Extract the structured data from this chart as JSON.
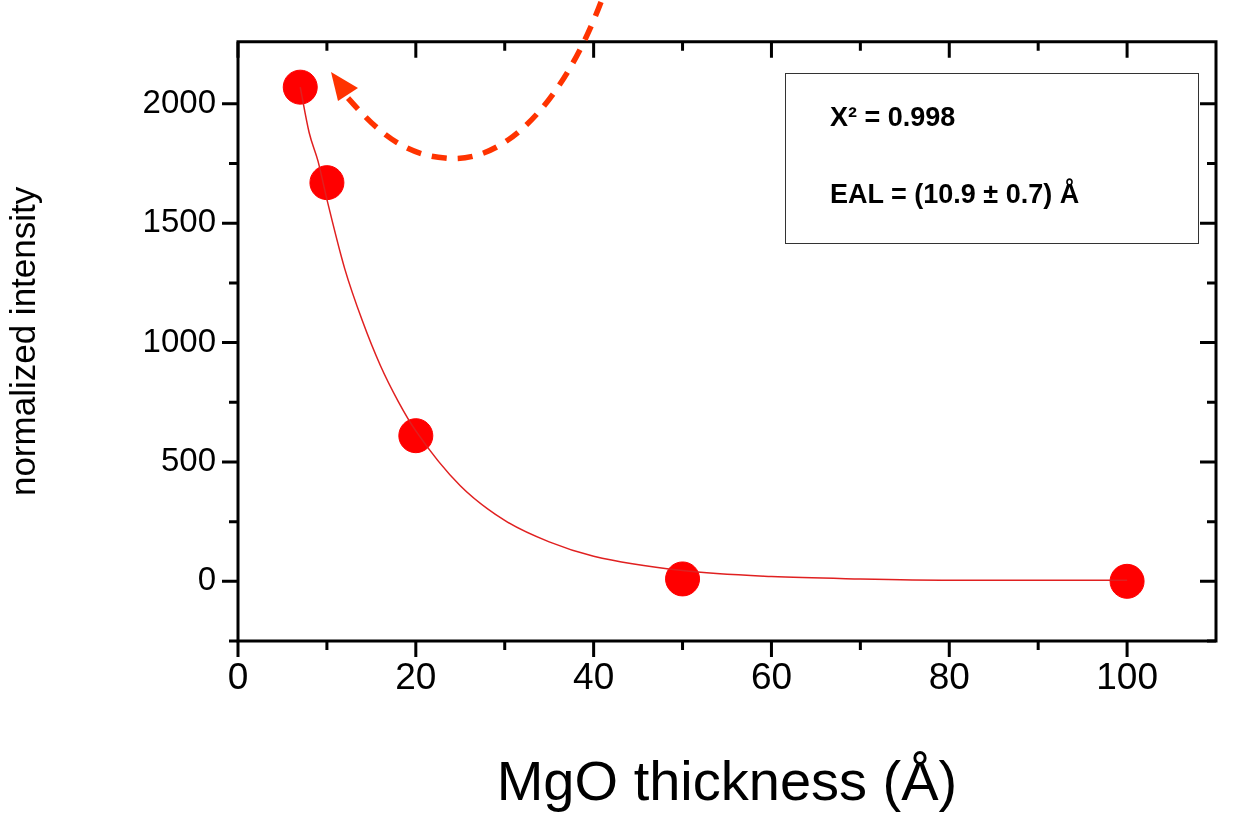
{
  "chart_data": {
    "type": "scatter",
    "xlabel": "MgO thickness (Å)",
    "ylabel": "normalized intensity",
    "x": [
      7,
      10,
      20,
      50,
      100
    ],
    "series": [
      {
        "color": "#ff0000",
        "values": [
          2070,
          1670,
          610,
          10,
          0
        ]
      },
      {
        "type": "line",
        "color": "#e02020",
        "marker": "none",
        "x": [
          7,
          8,
          9,
          10,
          12,
          14,
          16,
          18,
          20,
          25,
          30,
          35,
          40,
          50,
          60,
          70,
          80,
          90,
          100
        ],
        "values": [
          2070,
          1880,
          1760,
          1600,
          1310,
          1090,
          905,
          755,
          630,
          400,
          255,
          165,
          105,
          45,
          20,
          10,
          5,
          5,
          5
        ]
      }
    ],
    "xlim": [
      0,
      110
    ],
    "xticks": [
      0,
      {
        "value": 10,
        "label": null
      },
      20,
      {
        "value": 30,
        "label": null
      },
      40,
      {
        "value": 50,
        "label": null
      },
      60,
      {
        "value": 70,
        "label": null
      },
      80,
      {
        "value": 90,
        "label": null
      },
      100
    ],
    "ylim": [
      -250,
      2260
    ],
    "yticks": [
      {
        "value": -250,
        "label": null
      },
      0,
      {
        "value": 250,
        "label": null
      },
      500,
      {
        "value": 750,
        "label": null
      },
      1000,
      {
        "value": 1250,
        "label": null
      },
      1500,
      {
        "value": 1750,
        "label": null
      },
      2000
    ],
    "marker": "circle",
    "grid": false,
    "legend": false,
    "annotations": [
      "X² = 0.998",
      "EAL = (10.9 ± 0.7) Å"
    ]
  }
}
